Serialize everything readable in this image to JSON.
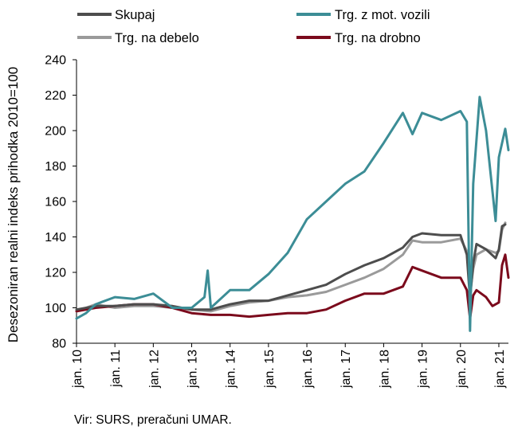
{
  "chart_data": {
    "type": "line",
    "title": "",
    "ylabel": "Desezoniran realni indeks prihodka 2010=100",
    "xlabel": "",
    "ylim": [
      80,
      240
    ],
    "yticks": [
      80,
      100,
      120,
      140,
      160,
      180,
      200,
      220,
      240
    ],
    "xlim": [
      "2010-01",
      "2021-04"
    ],
    "xtick_labels": [
      "jan. 10",
      "jan. 11",
      "jan. 12",
      "jan. 13",
      "jan. 14",
      "jan. 15",
      "jan. 16",
      "jan. 17",
      "jan. 18",
      "jan. 19",
      "jan. 20",
      "jan. 21"
    ],
    "grid": "none",
    "legend_placement": "top",
    "colors": {
      "dark_gray": "#4d4d4d",
      "teal": "#3c8d96",
      "gray": "#9a9a9a",
      "dark_red": "#7b0a1c"
    },
    "series": [
      {
        "name": "Skupaj",
        "color": "#4d4d4d",
        "points": [
          [
            "2010-01",
            99
          ],
          [
            "2010-07",
            101
          ],
          [
            "2011-01",
            101
          ],
          [
            "2011-07",
            102
          ],
          [
            "2012-01",
            102
          ],
          [
            "2012-07",
            101
          ],
          [
            "2013-01",
            99
          ],
          [
            "2013-07",
            99
          ],
          [
            "2014-01",
            102
          ],
          [
            "2014-07",
            104
          ],
          [
            "2015-01",
            104
          ],
          [
            "2015-07",
            107
          ],
          [
            "2016-01",
            110
          ],
          [
            "2016-07",
            113
          ],
          [
            "2017-01",
            119
          ],
          [
            "2017-07",
            124
          ],
          [
            "2018-01",
            128
          ],
          [
            "2018-07",
            134
          ],
          [
            "2018-10",
            140
          ],
          [
            "2019-01",
            142
          ],
          [
            "2019-07",
            141
          ],
          [
            "2020-01",
            141
          ],
          [
            "2020-03",
            130
          ],
          [
            "2020-04",
            105
          ],
          [
            "2020-05",
            125
          ],
          [
            "2020-06",
            136
          ],
          [
            "2020-09",
            133
          ],
          [
            "2020-12",
            128
          ],
          [
            "2021-01",
            133
          ],
          [
            "2021-02",
            146
          ],
          [
            "2021-03",
            147
          ]
        ]
      },
      {
        "name": "Trg. z mot. vozili",
        "color": "#3c8d96",
        "points": [
          [
            "2010-01",
            94
          ],
          [
            "2010-04",
            97
          ],
          [
            "2010-07",
            102
          ],
          [
            "2011-01",
            106
          ],
          [
            "2011-07",
            105
          ],
          [
            "2012-01",
            108
          ],
          [
            "2012-07",
            100
          ],
          [
            "2013-01",
            100
          ],
          [
            "2013-05",
            106
          ],
          [
            "2013-06",
            121
          ],
          [
            "2013-07",
            100
          ],
          [
            "2014-01",
            110
          ],
          [
            "2014-07",
            110
          ],
          [
            "2015-01",
            119
          ],
          [
            "2015-07",
            131
          ],
          [
            "2016-01",
            150
          ],
          [
            "2016-07",
            160
          ],
          [
            "2017-01",
            170
          ],
          [
            "2017-07",
            177
          ],
          [
            "2018-01",
            193
          ],
          [
            "2018-07",
            210
          ],
          [
            "2018-10",
            198
          ],
          [
            "2019-01",
            210
          ],
          [
            "2019-07",
            206
          ],
          [
            "2020-01",
            211
          ],
          [
            "2020-03",
            205
          ],
          [
            "2020-04",
            87
          ],
          [
            "2020-05",
            170
          ],
          [
            "2020-07",
            219
          ],
          [
            "2020-09",
            200
          ],
          [
            "2020-12",
            149
          ],
          [
            "2021-01",
            185
          ],
          [
            "2021-03",
            201
          ],
          [
            "2021-04",
            189
          ]
        ]
      },
      {
        "name": "Trg. na debelo",
        "color": "#9a9a9a",
        "points": [
          [
            "2010-01",
            98
          ],
          [
            "2010-07",
            102
          ],
          [
            "2011-01",
            100
          ],
          [
            "2011-07",
            101
          ],
          [
            "2012-01",
            101
          ],
          [
            "2012-07",
            100
          ],
          [
            "2013-01",
            99
          ],
          [
            "2013-07",
            98
          ],
          [
            "2014-01",
            101
          ],
          [
            "2014-07",
            103
          ],
          [
            "2015-01",
            104
          ],
          [
            "2015-07",
            106
          ],
          [
            "2016-01",
            107
          ],
          [
            "2016-07",
            109
          ],
          [
            "2017-01",
            113
          ],
          [
            "2017-07",
            117
          ],
          [
            "2018-01",
            122
          ],
          [
            "2018-07",
            130
          ],
          [
            "2018-10",
            138
          ],
          [
            "2019-01",
            137
          ],
          [
            "2019-07",
            137
          ],
          [
            "2020-01",
            139
          ],
          [
            "2020-03",
            132
          ],
          [
            "2020-04",
            108
          ],
          [
            "2020-05",
            122
          ],
          [
            "2020-06",
            130
          ],
          [
            "2020-09",
            133
          ],
          [
            "2020-12",
            131
          ],
          [
            "2021-01",
            132
          ],
          [
            "2021-02",
            144
          ],
          [
            "2021-03",
            148
          ]
        ]
      },
      {
        "name": "Trg. na drobno",
        "color": "#7b0a1c",
        "points": [
          [
            "2010-01",
            98
          ],
          [
            "2010-07",
            100
          ],
          [
            "2011-01",
            101
          ],
          [
            "2011-07",
            102
          ],
          [
            "2012-01",
            102
          ],
          [
            "2012-07",
            100
          ],
          [
            "2013-01",
            97
          ],
          [
            "2013-07",
            96
          ],
          [
            "2014-01",
            96
          ],
          [
            "2014-07",
            95
          ],
          [
            "2015-01",
            96
          ],
          [
            "2015-07",
            97
          ],
          [
            "2016-01",
            97
          ],
          [
            "2016-07",
            99
          ],
          [
            "2017-01",
            104
          ],
          [
            "2017-07",
            108
          ],
          [
            "2018-01",
            108
          ],
          [
            "2018-07",
            112
          ],
          [
            "2018-10",
            123
          ],
          [
            "2019-01",
            121
          ],
          [
            "2019-07",
            117
          ],
          [
            "2020-01",
            117
          ],
          [
            "2020-03",
            110
          ],
          [
            "2020-04",
            94
          ],
          [
            "2020-05",
            107
          ],
          [
            "2020-06",
            110
          ],
          [
            "2020-09",
            106
          ],
          [
            "2020-11",
            101
          ],
          [
            "2021-01",
            103
          ],
          [
            "2021-02",
            124
          ],
          [
            "2021-03",
            130
          ],
          [
            "2021-04",
            117
          ]
        ]
      }
    ]
  },
  "source": "Vir: SURS, preračuni UMAR."
}
